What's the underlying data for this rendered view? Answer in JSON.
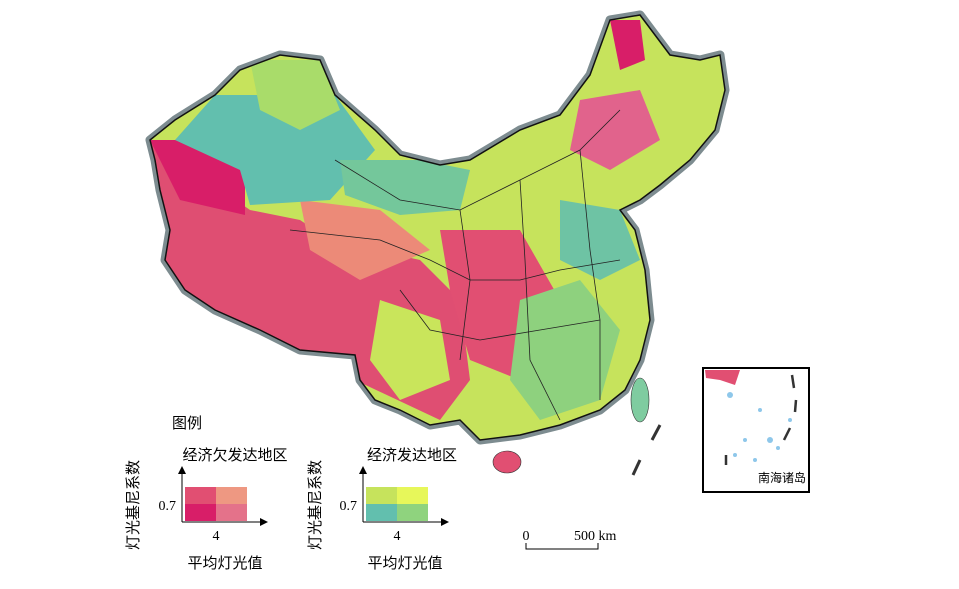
{
  "legend": {
    "title": "图例",
    "panels": [
      {
        "title": "经济欠发达地区",
        "y_axis_label": "灯光基尼系数",
        "y_tick": "0.7",
        "x_tick": "4",
        "x_axis_label": "平均灯光值"
      },
      {
        "title": "经济发达地区",
        "y_axis_label": "灯光基尼系数",
        "y_tick": "0.7",
        "x_tick": "4",
        "x_axis_label": "平均灯光值"
      }
    ]
  },
  "scale_bar": {
    "start": "0",
    "end": "500 km"
  },
  "inset": {
    "label": "南海诸岛"
  }
}
